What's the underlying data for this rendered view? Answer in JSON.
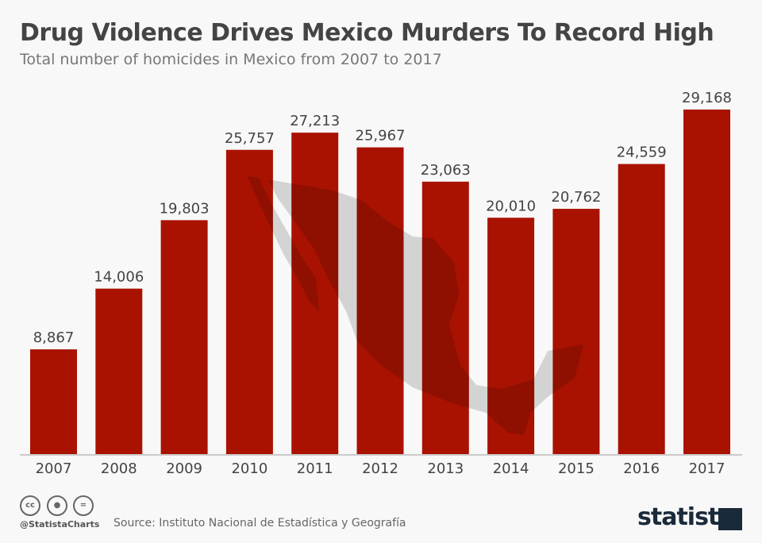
{
  "header": {
    "title": "Drug Violence Drives Mexico Murders To Record High",
    "subtitle": "Total number of homicides in Mexico from 2007 to 2017"
  },
  "chart_data": {
    "type": "bar",
    "title": "Drug Violence Drives Mexico Murders To Record High",
    "subtitle": "Total number of homicides in Mexico from 2007 to 2017",
    "categories": [
      "2007",
      "2008",
      "2009",
      "2010",
      "2011",
      "2012",
      "2013",
      "2014",
      "2015",
      "2016",
      "2017"
    ],
    "values": [
      8867,
      14006,
      19803,
      25757,
      27213,
      25967,
      23063,
      20010,
      20762,
      24559,
      29168
    ],
    "labels": [
      "8,867",
      "14,006",
      "19,803",
      "25,757",
      "27,213",
      "25,967",
      "23,063",
      "20,010",
      "20,762",
      "24,559",
      "29,168"
    ],
    "xlabel": "",
    "ylabel": "",
    "ylim": [
      0,
      29168
    ],
    "grid": false,
    "bar_color": "#a91200",
    "background_image": "map-of-mexico"
  },
  "footer": {
    "handle": "@StatistaCharts",
    "source": "Source: Instituto Nacional de Estadística y Geografía",
    "brand": "statista",
    "license_icons": [
      "cc-icon",
      "attribution-icon",
      "no-derivatives-icon"
    ],
    "cc": "cc",
    "nd": "="
  }
}
